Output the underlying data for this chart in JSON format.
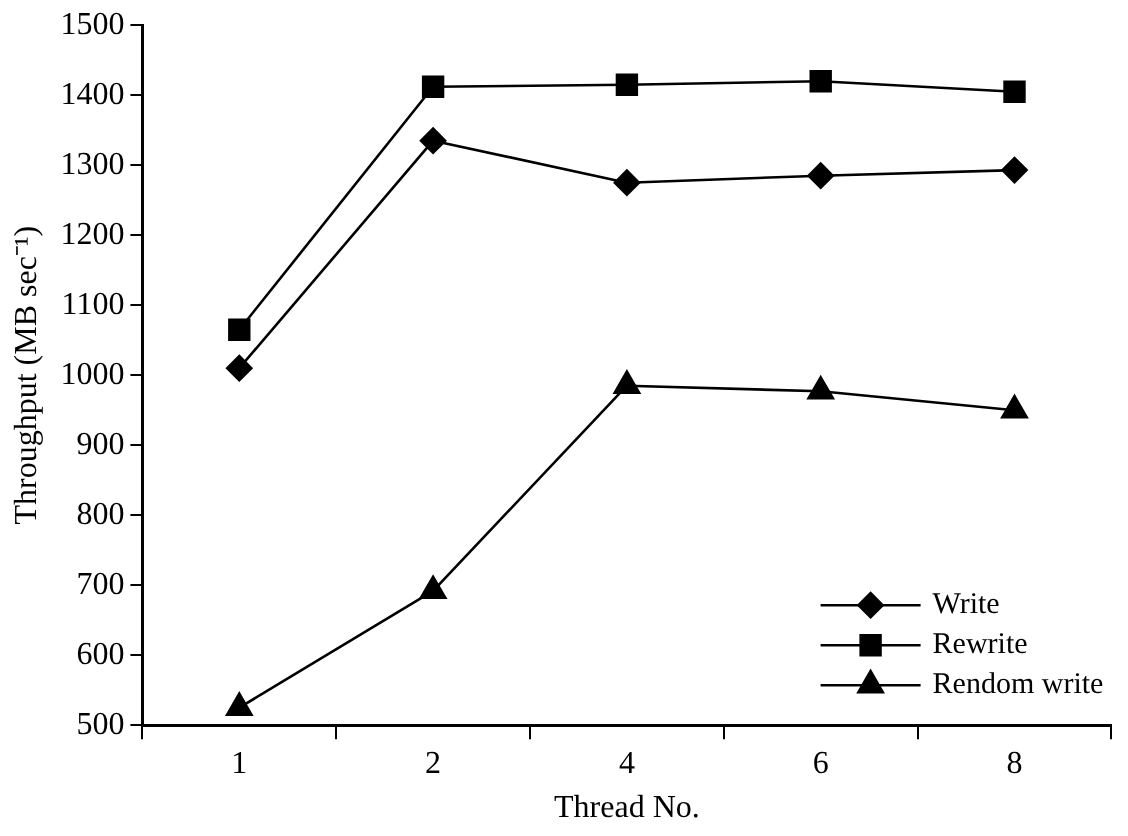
{
  "chart_data": {
    "type": "line",
    "xlabel": "Thread No.",
    "ylabel": "Throughput (MB sec⁻¹)",
    "categories": [
      "1",
      "2",
      "4",
      "6",
      "8"
    ],
    "series": [
      {
        "name": "Write",
        "color": "#000000",
        "marker": "diamond",
        "values": [
          1010,
          1335,
          1275,
          1285,
          1293
        ]
      },
      {
        "name": "Rewrite",
        "color": "#000000",
        "marker": "square",
        "values": [
          1065,
          1412,
          1415,
          1420,
          1405
        ]
      },
      {
        "name": "Rendom write",
        "color": "#000000",
        "marker": "triangle",
        "values": [
          525,
          692,
          985,
          977,
          950
        ]
      }
    ],
    "ylim": [
      500,
      1500
    ],
    "yticks": [
      500,
      600,
      700,
      800,
      900,
      1000,
      1100,
      1200,
      1300,
      1400,
      1500
    ],
    "grid": false,
    "legend": "bottom right",
    "line_style": "solid"
  }
}
